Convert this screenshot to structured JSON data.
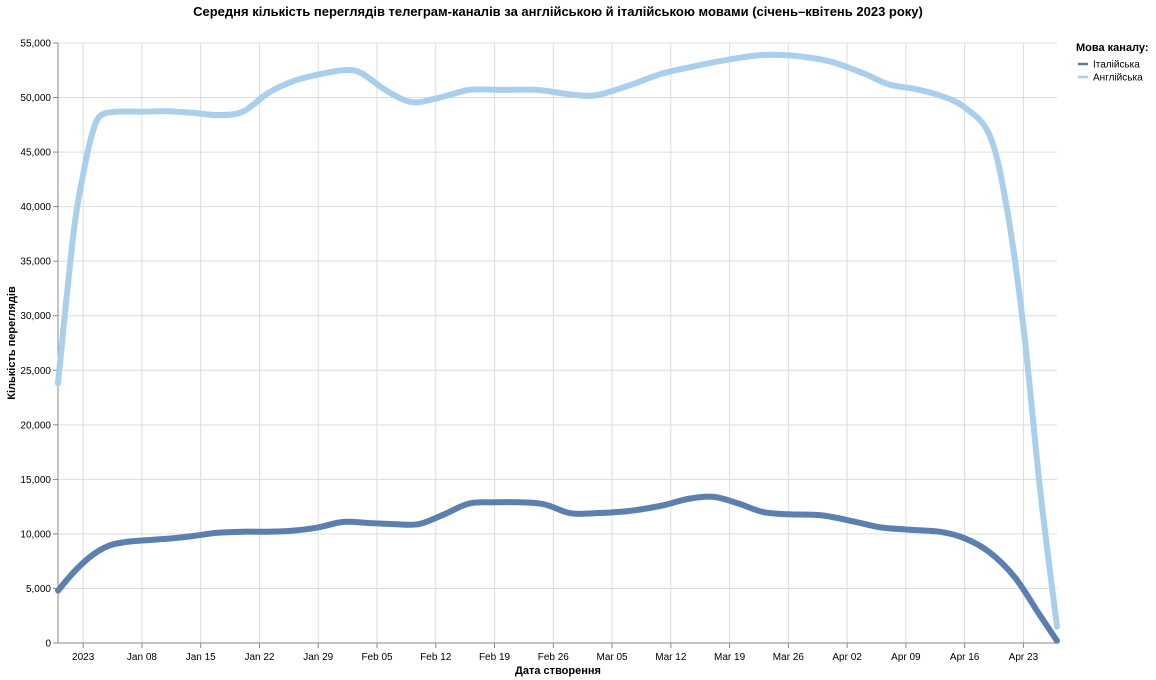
{
  "chart_data": {
    "type": "line",
    "title": "Середня кількість переглядів телеграм-каналів за англійською й італійською мовами (січень–квітень 2023 року)",
    "xlabel": "Дата створення",
    "ylabel": "Кількість переглядів",
    "ylim": [
      0,
      55000
    ],
    "y_ticks": [
      0,
      5000,
      10000,
      15000,
      20000,
      25000,
      30000,
      35000,
      40000,
      45000,
      50000,
      55000
    ],
    "y_tick_labels": [
      "0",
      "5,000",
      "10,000",
      "15,000",
      "20,000",
      "25,000",
      "30,000",
      "35,000",
      "40,000",
      "45,000",
      "50,000",
      "55,000"
    ],
    "x_domain": [
      "2022-12-29",
      "2023-04-27"
    ],
    "x_ticks": [
      "2023-01-01",
      "2023-01-08",
      "2023-01-15",
      "2023-01-22",
      "2023-01-29",
      "2023-02-05",
      "2023-02-12",
      "2023-02-19",
      "2023-02-26",
      "2023-03-05",
      "2023-03-12",
      "2023-03-19",
      "2023-03-26",
      "2023-04-02",
      "2023-04-09",
      "2023-04-16",
      "2023-04-23"
    ],
    "x_tick_labels": [
      "2023",
      "Jan 08",
      "Jan 15",
      "Jan 22",
      "Jan 29",
      "Feb 05",
      "Feb 12",
      "Feb 19",
      "Feb 26",
      "Mar 05",
      "Mar 12",
      "Mar 19",
      "Mar 26",
      "Apr 02",
      "Apr 09",
      "Apr 16",
      "Apr 23"
    ],
    "grid": true,
    "legend": {
      "title": "Мова каналу:",
      "position": "top-right"
    },
    "series": [
      {
        "name": "Італійська",
        "color": "#5b7faf",
        "points": [
          [
            "2022-12-29",
            4800
          ],
          [
            "2022-12-31",
            6600
          ],
          [
            "2023-01-02",
            8000
          ],
          [
            "2023-01-04",
            8900
          ],
          [
            "2023-01-06",
            9250
          ],
          [
            "2023-01-08",
            9400
          ],
          [
            "2023-01-11",
            9550
          ],
          [
            "2023-01-14",
            9800
          ],
          [
            "2023-01-17",
            10100
          ],
          [
            "2023-01-20",
            10200
          ],
          [
            "2023-01-23",
            10200
          ],
          [
            "2023-01-26",
            10300
          ],
          [
            "2023-01-29",
            10600
          ],
          [
            "2023-02-01",
            11100
          ],
          [
            "2023-02-04",
            11000
          ],
          [
            "2023-02-07",
            10900
          ],
          [
            "2023-02-10",
            10900
          ],
          [
            "2023-02-13",
            11800
          ],
          [
            "2023-02-16",
            12800
          ],
          [
            "2023-02-19",
            12900
          ],
          [
            "2023-02-22",
            12900
          ],
          [
            "2023-02-25",
            12700
          ],
          [
            "2023-02-28",
            11900
          ],
          [
            "2023-03-03",
            11900
          ],
          [
            "2023-03-07",
            12100
          ],
          [
            "2023-03-11",
            12600
          ],
          [
            "2023-03-14",
            13200
          ],
          [
            "2023-03-17",
            13400
          ],
          [
            "2023-03-20",
            12800
          ],
          [
            "2023-03-23",
            12000
          ],
          [
            "2023-03-26",
            11800
          ],
          [
            "2023-03-30",
            11700
          ],
          [
            "2023-04-03",
            11100
          ],
          [
            "2023-04-06",
            10600
          ],
          [
            "2023-04-09",
            10400
          ],
          [
            "2023-04-13",
            10200
          ],
          [
            "2023-04-16",
            9600
          ],
          [
            "2023-04-19",
            8300
          ],
          [
            "2023-04-22",
            6000
          ],
          [
            "2023-04-25",
            2500
          ],
          [
            "2023-04-27",
            200
          ]
        ]
      },
      {
        "name": "Англійська",
        "color": "#a9cfec",
        "points": [
          [
            "2022-12-29",
            23800
          ],
          [
            "2022-12-30",
            31500
          ],
          [
            "2022-12-31",
            38500
          ],
          [
            "2023-01-01",
            43000
          ],
          [
            "2023-01-02",
            46500
          ],
          [
            "2023-01-03",
            48300
          ],
          [
            "2023-01-05",
            48700
          ],
          [
            "2023-01-08",
            48700
          ],
          [
            "2023-01-11",
            48750
          ],
          [
            "2023-01-14",
            48600
          ],
          [
            "2023-01-17",
            48400
          ],
          [
            "2023-01-20",
            48700
          ],
          [
            "2023-01-23",
            50400
          ],
          [
            "2023-01-26",
            51500
          ],
          [
            "2023-01-29",
            52100
          ],
          [
            "2023-02-01",
            52500
          ],
          [
            "2023-02-03",
            52300
          ],
          [
            "2023-02-06",
            50700
          ],
          [
            "2023-02-09",
            49600
          ],
          [
            "2023-02-12",
            49900
          ],
          [
            "2023-02-16",
            50700
          ],
          [
            "2023-02-20",
            50700
          ],
          [
            "2023-02-24",
            50700
          ],
          [
            "2023-02-28",
            50300
          ],
          [
            "2023-03-03",
            50200
          ],
          [
            "2023-03-07",
            51100
          ],
          [
            "2023-03-11",
            52200
          ],
          [
            "2023-03-15",
            52900
          ],
          [
            "2023-03-19",
            53500
          ],
          [
            "2023-03-23",
            53900
          ],
          [
            "2023-03-27",
            53800
          ],
          [
            "2023-03-31",
            53300
          ],
          [
            "2023-04-04",
            52200
          ],
          [
            "2023-04-07",
            51200
          ],
          [
            "2023-04-10",
            50800
          ],
          [
            "2023-04-13",
            50200
          ],
          [
            "2023-04-16",
            49100
          ],
          [
            "2023-04-19",
            46500
          ],
          [
            "2023-04-21",
            40000
          ],
          [
            "2023-04-23",
            29000
          ],
          [
            "2023-04-25",
            14000
          ],
          [
            "2023-04-27",
            1500
          ]
        ]
      }
    ]
  }
}
